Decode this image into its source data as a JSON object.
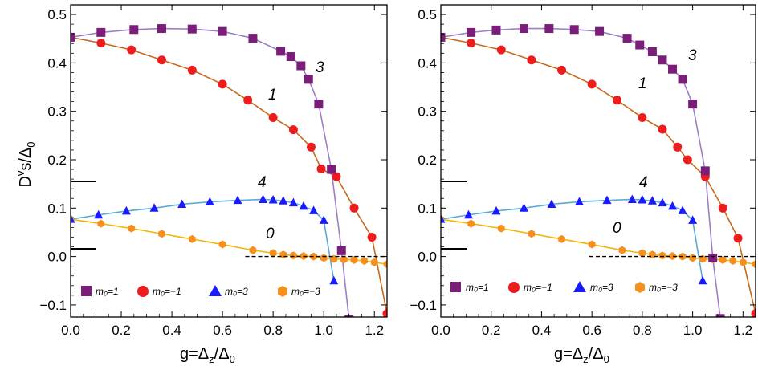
{
  "chart_data": [
    {
      "type": "scatter",
      "panel": "left",
      "xlabel": "g=Δz/Δ0",
      "ylabel": "Dvs/Δ0",
      "xlim": [
        0,
        1.25
      ],
      "ylim": [
        -0.125,
        0.52
      ],
      "xticks": [
        "0.0",
        "0.2",
        "0.4",
        "0.6",
        "0.8",
        "1.0",
        "1.2"
      ],
      "yticks": [
        "-0.1",
        "0.0",
        "0.1",
        "0.2",
        "0.3",
        "0.4",
        "0.5"
      ],
      "dashed_line": {
        "y": 0,
        "x_from": 0.69,
        "x_to": 1.25
      },
      "series": [
        {
          "name": "m0=1",
          "label": "3",
          "marker": "square",
          "color": "#7b1e7a",
          "line_color": "#9b7fc6",
          "x": [
            0,
            0.12,
            0.25,
            0.36,
            0.48,
            0.6,
            0.72,
            0.83,
            0.87,
            0.91,
            0.94,
            0.98,
            1.03,
            1.07,
            1.1
          ],
          "y": [
            0.453,
            0.463,
            0.469,
            0.471,
            0.47,
            0.465,
            0.451,
            0.424,
            0.413,
            0.394,
            0.366,
            0.315,
            0.18,
            0.012,
            -0.13
          ]
        },
        {
          "name": "m0=-1",
          "label": "1",
          "marker": "circle",
          "color": "#ee1c1c",
          "line_color": "#c8691c",
          "x": [
            0,
            0.12,
            0.24,
            0.36,
            0.48,
            0.6,
            0.7,
            0.8,
            0.88,
            0.95,
            0.99,
            1.05,
            1.12,
            1.19,
            1.25
          ],
          "y": [
            0.453,
            0.441,
            0.427,
            0.406,
            0.385,
            0.356,
            0.323,
            0.287,
            0.262,
            0.226,
            0.181,
            0.165,
            0.1,
            0.04,
            -0.118
          ]
        },
        {
          "name": "m0=3",
          "label": "4",
          "marker": "triangle",
          "color": "#1a1aff",
          "line_color": "#5aa9d6",
          "x": [
            0,
            0.11,
            0.22,
            0.33,
            0.44,
            0.55,
            0.66,
            0.76,
            0.8,
            0.84,
            0.88,
            0.92,
            0.96,
            1.0,
            1.04
          ],
          "y": [
            0.077,
            0.086,
            0.094,
            0.1,
            0.108,
            0.113,
            0.116,
            0.118,
            0.117,
            0.115,
            0.111,
            0.104,
            0.095,
            0.075,
            -0.05
          ]
        },
        {
          "name": "m0=-3",
          "label": "0",
          "marker": "hexagon",
          "color": "#f5901e",
          "line_color": "#f5b400",
          "x": [
            0,
            0.12,
            0.24,
            0.36,
            0.48,
            0.6,
            0.72,
            0.8,
            0.84,
            0.88,
            0.92,
            0.96,
            1.0,
            1.04,
            1.08,
            1.12,
            1.16,
            1.2,
            1.25
          ],
          "y": [
            0.077,
            0.068,
            0.058,
            0.047,
            0.036,
            0.025,
            0.013,
            0.007,
            0.004,
            0.002,
            0.001,
            0.0,
            -0.003,
            -0.005,
            -0.006,
            -0.007,
            -0.009,
            -0.012,
            -0.016
          ]
        }
      ]
    },
    {
      "type": "scatter",
      "panel": "right",
      "xlabel": "g=Δz/Δ0",
      "xlim": [
        0,
        1.25
      ],
      "ylim": [
        -0.125,
        0.52
      ],
      "xticks": [
        "0.0",
        "0.2",
        "0.4",
        "0.6",
        "0.8",
        "1.0",
        "1.2"
      ],
      "yticks": [
        "-0.1",
        "0.0",
        "0.1",
        "0.2",
        "0.3",
        "0.4",
        "0.5"
      ],
      "dashed_line": {
        "y": 0,
        "x_from": 0.59,
        "x_to": 1.25
      },
      "series": [
        {
          "name": "m0=1",
          "label": "3",
          "marker": "square",
          "color": "#7b1e7a",
          "line_color": "#9b7fc6",
          "x": [
            0,
            0.12,
            0.22,
            0.33,
            0.43,
            0.53,
            0.63,
            0.74,
            0.79,
            0.84,
            0.88,
            0.92,
            0.96,
            1.0,
            1.05,
            1.08,
            1.11
          ],
          "y": [
            0.453,
            0.463,
            0.468,
            0.471,
            0.471,
            0.469,
            0.465,
            0.451,
            0.437,
            0.423,
            0.406,
            0.387,
            0.366,
            0.315,
            0.177,
            -0.003,
            -0.128
          ]
        },
        {
          "name": "m0=-1",
          "label": "1",
          "marker": "circle",
          "color": "#ee1c1c",
          "line_color": "#c8691c",
          "x": [
            0,
            0.12,
            0.24,
            0.36,
            0.48,
            0.6,
            0.7,
            0.8,
            0.88,
            0.94,
            0.98,
            1.05,
            1.12,
            1.18,
            1.25
          ],
          "y": [
            0.453,
            0.441,
            0.427,
            0.406,
            0.385,
            0.356,
            0.323,
            0.287,
            0.263,
            0.226,
            0.2,
            0.165,
            0.1,
            0.038,
            -0.118
          ]
        },
        {
          "name": "m0=3",
          "label": "4",
          "marker": "triangle",
          "color": "#1a1aff",
          "line_color": "#5aa9d6",
          "x": [
            0,
            0.11,
            0.22,
            0.33,
            0.44,
            0.55,
            0.66,
            0.76,
            0.8,
            0.84,
            0.88,
            0.92,
            0.96,
            1.0,
            1.04
          ],
          "y": [
            0.077,
            0.086,
            0.094,
            0.1,
            0.108,
            0.113,
            0.116,
            0.118,
            0.117,
            0.115,
            0.111,
            0.104,
            0.095,
            0.075,
            -0.05
          ]
        },
        {
          "name": "m0=-3",
          "label": "0",
          "marker": "hexagon",
          "color": "#f5901e",
          "line_color": "#f5b400",
          "x": [
            0,
            0.12,
            0.24,
            0.36,
            0.48,
            0.6,
            0.72,
            0.8,
            0.84,
            0.88,
            0.92,
            0.96,
            1.0,
            1.04,
            1.08,
            1.12,
            1.16,
            1.2,
            1.25
          ],
          "y": [
            0.077,
            0.068,
            0.058,
            0.047,
            0.036,
            0.025,
            0.013,
            0.007,
            0.004,
            0.002,
            0.001,
            0.0,
            -0.003,
            -0.005,
            -0.006,
            -0.007,
            -0.009,
            -0.012,
            -0.016
          ]
        }
      ]
    }
  ],
  "curve_labels": {
    "left": {
      "c3": "3",
      "c1": "1",
      "c4": "4",
      "c0": "0"
    },
    "right": {
      "c3": "3",
      "c1": "1",
      "c4": "4",
      "c0": "0"
    }
  },
  "legend": {
    "m0_1": "m₀=1",
    "m0_neg1": "m₀=−1",
    "m0_3": "m₀=3",
    "m0_neg3": "m₀=−3"
  },
  "axis_titles": {
    "y_main": "D",
    "y_sup": "v",
    "y_rest": "s/Δ",
    "y_sub": "0",
    "x_main": "g=Δ",
    "x_sub1": "z",
    "x_mid": "/Δ",
    "x_sub2": "0"
  }
}
